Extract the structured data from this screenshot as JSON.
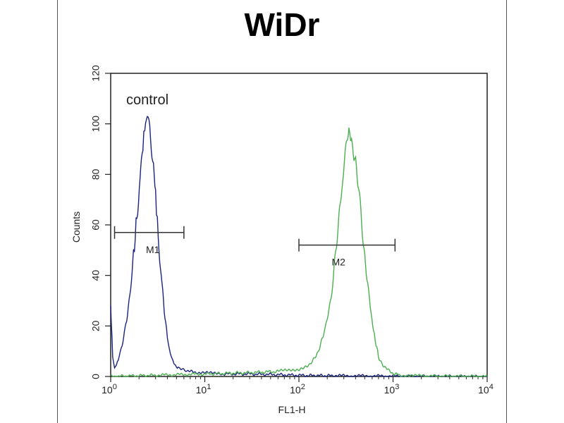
{
  "chart_data": {
    "type": "line",
    "title": "WiDr",
    "xlabel": "FL1-H",
    "ylabel": "Counts",
    "x_scale": "log",
    "xlim": [
      1,
      10000
    ],
    "ylim": [
      0,
      120
    ],
    "yticks": [
      "0",
      "20",
      "40",
      "60",
      "80",
      "100",
      "120"
    ],
    "xtick_values": [
      1,
      10,
      100,
      1000,
      10000
    ],
    "xticks": [
      {
        "base": "10",
        "exp": "0"
      },
      {
        "base": "10",
        "exp": "1"
      },
      {
        "base": "10",
        "exp": "2"
      },
      {
        "base": "10",
        "exp": "3"
      },
      {
        "base": "10",
        "exp": "4"
      }
    ],
    "grid": false,
    "series": [
      {
        "name": "control",
        "color": "#1a237e",
        "points": [
          [
            1.0,
            28
          ],
          [
            1.05,
            8
          ],
          [
            1.1,
            3
          ],
          [
            1.2,
            6
          ],
          [
            1.3,
            12
          ],
          [
            1.45,
            20
          ],
          [
            1.6,
            33
          ],
          [
            1.75,
            48
          ],
          [
            1.9,
            63
          ],
          [
            2.05,
            78
          ],
          [
            2.2,
            92
          ],
          [
            2.35,
            101
          ],
          [
            2.5,
            103
          ],
          [
            2.65,
            96
          ],
          [
            2.8,
            85
          ],
          [
            3.0,
            72
          ],
          [
            3.2,
            56
          ],
          [
            3.45,
            40
          ],
          [
            3.7,
            26
          ],
          [
            4.0,
            15
          ],
          [
            4.3,
            9
          ],
          [
            4.7,
            5
          ],
          [
            5.3,
            3
          ],
          [
            6.5,
            2
          ],
          [
            9,
            1.5
          ],
          [
            15,
            1
          ],
          [
            30,
            1
          ],
          [
            60,
            0.7
          ],
          [
            120,
            0.4
          ],
          [
            250,
            0.3
          ],
          [
            600,
            0.2
          ],
          [
            1500,
            0.1
          ],
          [
            10000,
            0
          ]
        ]
      },
      {
        "name": "",
        "color": "#4caf50",
        "points": [
          [
            1.0,
            0
          ],
          [
            3,
            0.5
          ],
          [
            10,
            1
          ],
          [
            30,
            1.5
          ],
          [
            60,
            2
          ],
          [
            100,
            3
          ],
          [
            130,
            5
          ],
          [
            160,
            10
          ],
          [
            190,
            18
          ],
          [
            220,
            32
          ],
          [
            250,
            50
          ],
          [
            280,
            70
          ],
          [
            310,
            88
          ],
          [
            340,
            97
          ],
          [
            370,
            92
          ],
          [
            400,
            83
          ],
          [
            440,
            70
          ],
          [
            490,
            52
          ],
          [
            550,
            33
          ],
          [
            620,
            18
          ],
          [
            700,
            8
          ],
          [
            800,
            4
          ],
          [
            950,
            1.5
          ],
          [
            1200,
            0.5
          ],
          [
            2000,
            0.2
          ],
          [
            10000,
            0
          ]
        ]
      }
    ],
    "annotations": {
      "control_label": "control",
      "markers": [
        {
          "label": "M1",
          "x_start": 1.1,
          "x_end": 6,
          "y": 57,
          "color": "#333333"
        },
        {
          "label": "M2",
          "x_start": 100,
          "x_end": 1050,
          "y": 52,
          "color": "#333333"
        }
      ]
    }
  }
}
